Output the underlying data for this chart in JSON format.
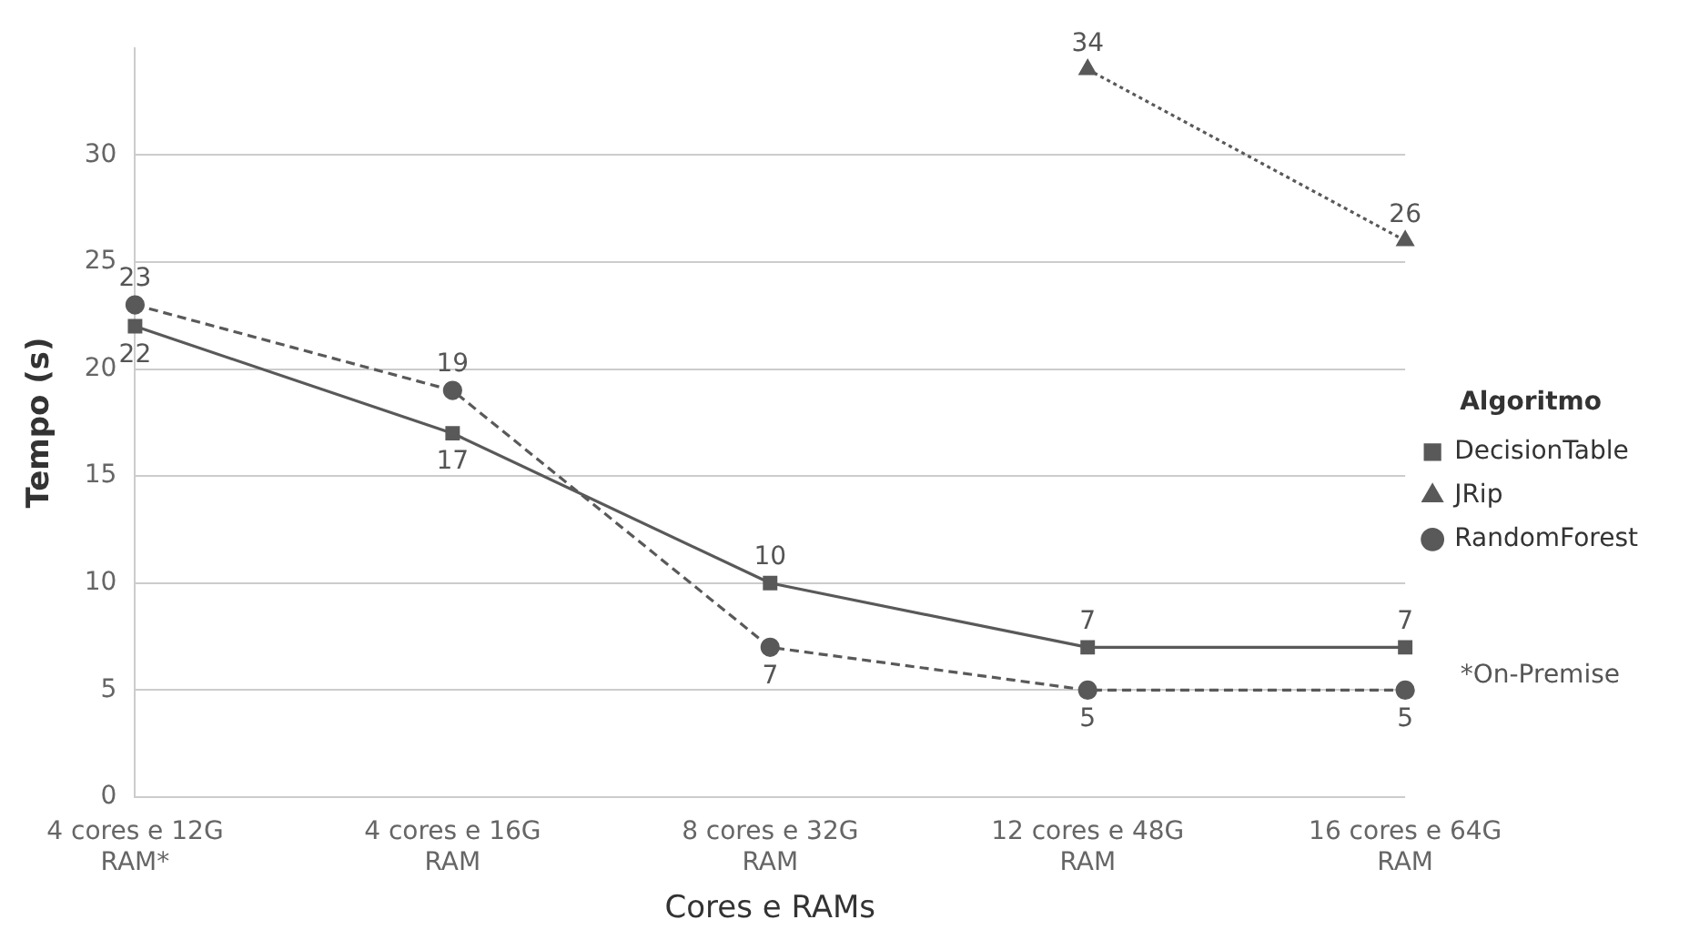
{
  "chart_data": {
    "type": "line",
    "xlabel": "Cores e RAMs",
    "ylabel": "Tempo (s)",
    "legend_title": "Algoritmo",
    "categories": [
      "4 cores e 12G RAM*",
      "4 cores e 16G RAM",
      "8 cores e 32G RAM",
      "12 cores e 48G RAM",
      "16 cores e 64G RAM"
    ],
    "series": [
      {
        "name": "DecisionTable",
        "color": "#595959",
        "values": [
          22,
          17,
          10,
          7,
          7
        ],
        "marker": "square",
        "line_style": "solid"
      },
      {
        "name": "JRip",
        "color": "#595959",
        "values": [
          null,
          null,
          null,
          34,
          26
        ],
        "marker": "triangle",
        "line_style": "dotted"
      },
      {
        "name": "RandomForest",
        "color": "#595959",
        "values": [
          23,
          19,
          7,
          5,
          5
        ],
        "marker": "circle",
        "line_style": "dashed"
      }
    ],
    "ylim": [
      0,
      35
    ],
    "yticks": [
      0,
      5,
      10,
      15,
      20,
      25,
      30
    ],
    "grid": "y",
    "legend": "right",
    "data_labels": true,
    "annotations": [
      "*On-Premise"
    ]
  }
}
